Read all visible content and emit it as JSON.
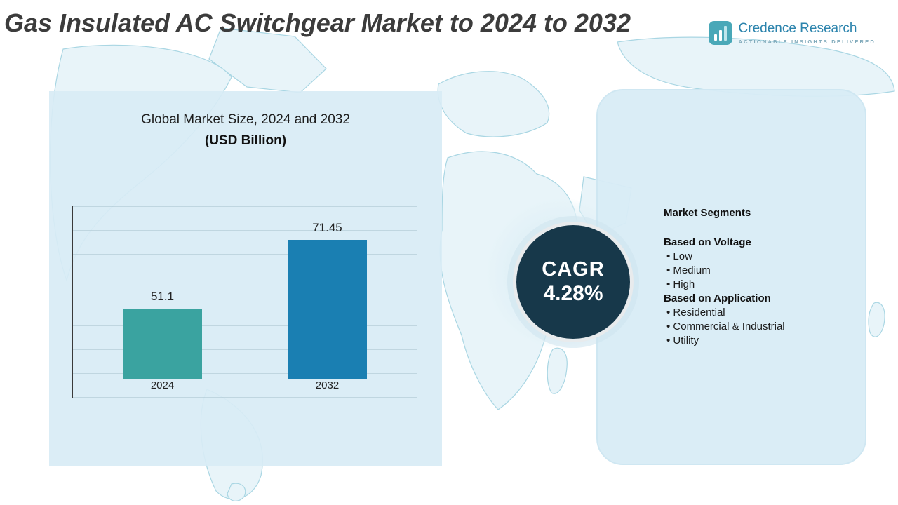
{
  "title": "Gas Insulated AC Switchgear Market to 2024 to 2032",
  "logo": {
    "name": "Credence Research",
    "tagline": "Actionable Insights Delivered"
  },
  "chart_panel": {
    "heading_line1": "Global Market Size, 2024 and 2032",
    "heading_line2": "(USD Billion)"
  },
  "cagr": {
    "label": "CAGR",
    "value": "4.28%"
  },
  "segments": {
    "heading": "Market Segments",
    "groups": [
      {
        "title": "Based on Voltage",
        "items": [
          "Low",
          "Medium",
          "High"
        ]
      },
      {
        "title": "Based on Application",
        "items": [
          "Residential",
          "Commercial & Industrial",
          "Utility"
        ]
      }
    ]
  },
  "chart_data": {
    "type": "bar",
    "title": "Global Market Size, 2024 and 2032 (USD Billion)",
    "categories": [
      "2024",
      "2032"
    ],
    "values": [
      51.1,
      71.45
    ],
    "value_labels": [
      "51.1",
      "71.45"
    ],
    "xlabel": "",
    "ylabel": "",
    "ylim": [
      30,
      80
    ],
    "grid": true,
    "legend": "none",
    "bar_colors": [
      "#3aa3a0",
      "#1a7fb2"
    ]
  },
  "colors": {
    "panel_background": "#d8ecf5",
    "cagr_circle": "#17384a",
    "bar_2024": "#3aa3a0",
    "bar_2032": "#1a7fb2",
    "map_stroke": "#a9d6e3"
  }
}
